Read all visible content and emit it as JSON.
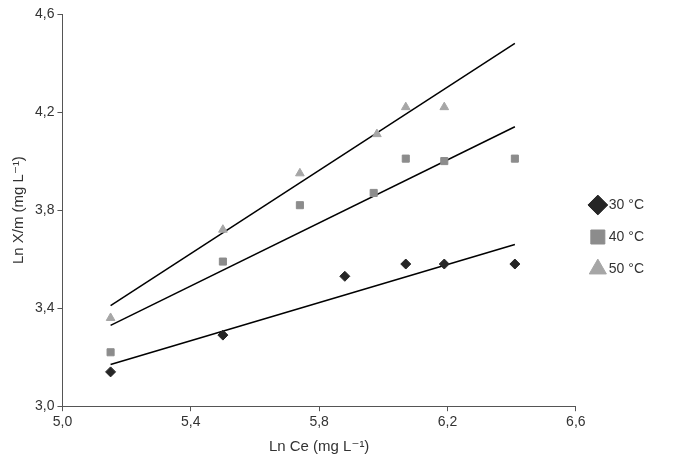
{
  "chart_data": {
    "type": "scatter",
    "x_label": "Ln Ce (mg L⁻¹)",
    "y_label": "Ln X/m (mg L⁻¹)",
    "xlim": [
      5.0,
      6.6
    ],
    "xticks": [
      {
        "value": 5.0,
        "label": "5,0"
      },
      {
        "value": 5.4,
        "label": "5,4"
      },
      {
        "value": 5.8,
        "label": "5,8"
      },
      {
        "value": 6.2,
        "label": "6,2"
      },
      {
        "value": 6.6,
        "label": "6,6"
      }
    ],
    "ylim": [
      3.0,
      4.6
    ],
    "yticks": [
      {
        "value": 3.0,
        "label": "3,0"
      },
      {
        "value": 3.4,
        "label": "3,4"
      },
      {
        "value": 3.8,
        "label": "3,8"
      },
      {
        "value": 4.2,
        "label": "4,2"
      },
      {
        "value": 4.6,
        "label": "4,6"
      }
    ],
    "grid": false,
    "legend": "right",
    "series": [
      {
        "name": "30 °C",
        "color": "#262626",
        "marker": "diamond",
        "x": [
          5.15,
          5.5,
          5.88,
          6.07,
          6.19,
          6.41
        ],
        "values": [
          3.14,
          3.29,
          3.53,
          3.58,
          3.58,
          3.58
        ]
      },
      {
        "name": "40 °C",
        "color": "#8c8c8c",
        "marker": "square",
        "x": [
          5.15,
          5.5,
          5.74,
          5.97,
          6.07,
          6.19,
          6.41
        ],
        "values": [
          3.22,
          3.59,
          3.82,
          3.87,
          4.01,
          4.0,
          4.01
        ]
      },
      {
        "name": "50 °C",
        "color": "#a6a6a6",
        "marker": "triangle",
        "x": [
          5.15,
          5.5,
          5.74,
          5.98,
          6.07,
          6.19
        ],
        "values": [
          3.36,
          3.72,
          3.95,
          4.11,
          4.22,
          4.22
        ]
      },
      {
        "type": "line",
        "color": "#000000",
        "marker": "none",
        "line_style": "solid",
        "x": [
          5.15,
          6.41
        ],
        "values": [
          3.17,
          3.66
        ]
      },
      {
        "type": "line",
        "color": "#000000",
        "marker": "none",
        "line_style": "solid",
        "x": [
          5.15,
          6.41
        ],
        "values": [
          3.33,
          4.14
        ]
      },
      {
        "type": "line",
        "color": "#000000",
        "marker": "none",
        "line_style": "solid",
        "x": [
          5.15,
          6.41
        ],
        "values": [
          3.41,
          4.48
        ]
      }
    ]
  }
}
